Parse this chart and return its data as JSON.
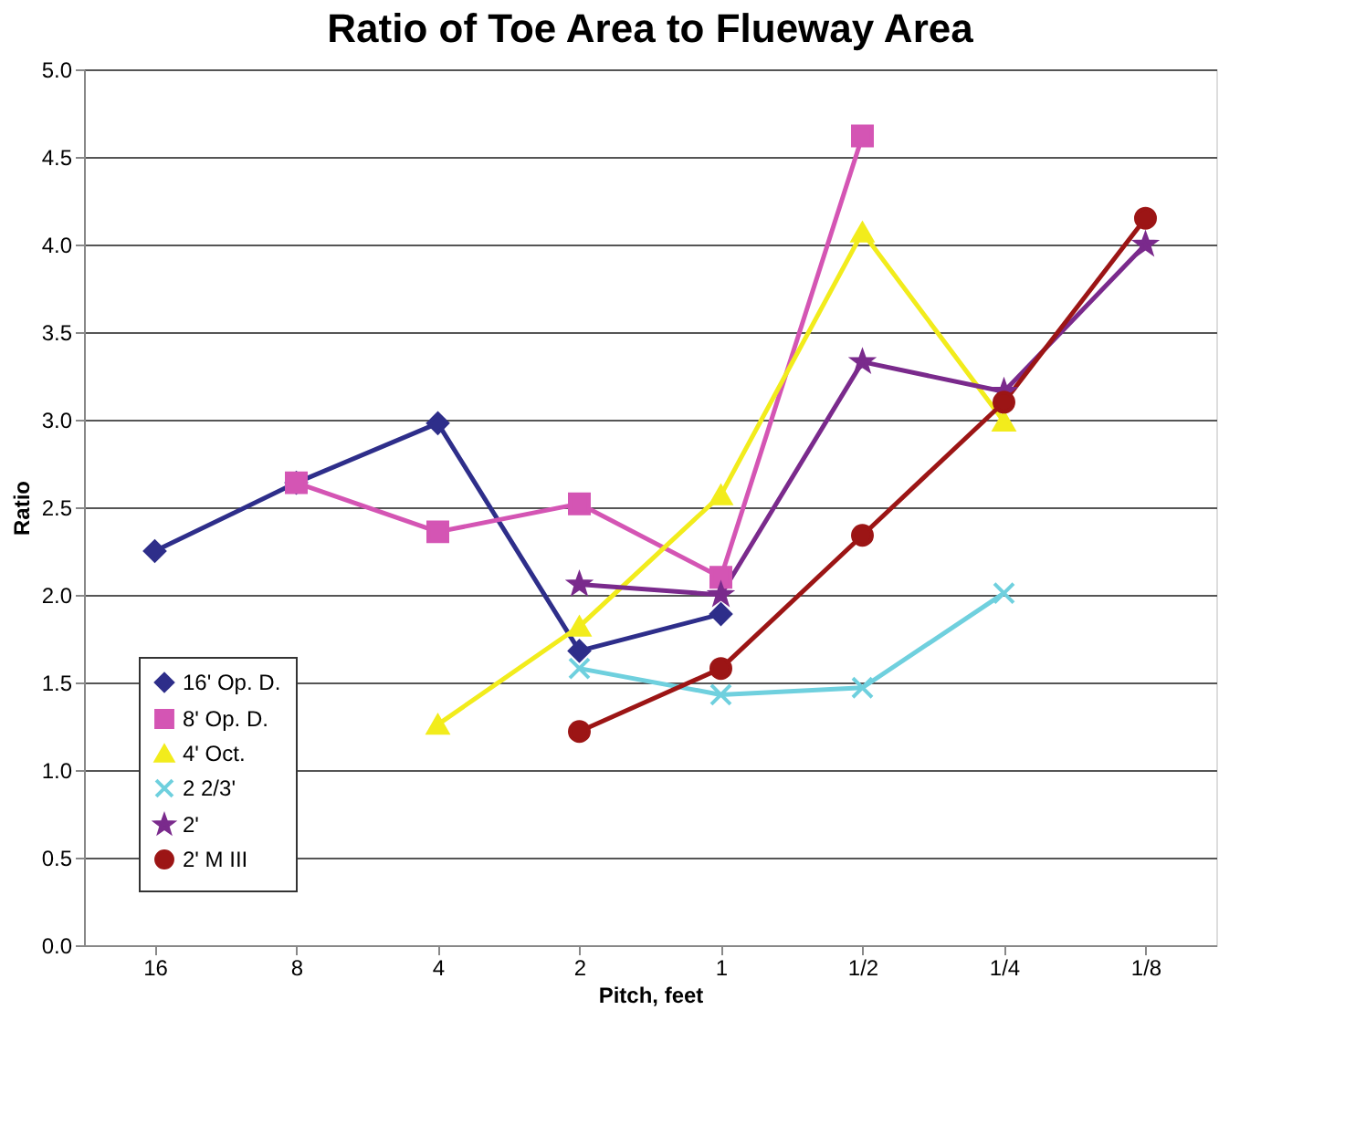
{
  "chart_data": {
    "type": "line",
    "title": "Ratio of Toe Area to Flueway Area",
    "xlabel": "Pitch, feet",
    "ylabel": "Ratio",
    "categories": [
      "16",
      "8",
      "4",
      "2",
      "1",
      "1/2",
      "1/4",
      "1/8"
    ],
    "series": [
      {
        "name": "16' Op. D.",
        "color": "#2e2e8a",
        "marker": "diamond",
        "values": [
          2.25,
          2.64,
          2.98,
          1.68,
          1.89,
          null,
          null,
          null
        ]
      },
      {
        "name": "8' Op. D.",
        "color": "#d455b4",
        "marker": "square",
        "values": [
          null,
          2.64,
          2.36,
          2.52,
          2.1,
          4.62,
          null,
          null
        ]
      },
      {
        "name": "4' Oct.",
        "color": "#f2ec1c",
        "marker": "triangle",
        "values": [
          null,
          null,
          1.26,
          1.82,
          2.57,
          4.07,
          2.99,
          null
        ]
      },
      {
        "name": "2 2/3'",
        "color": "#6fd0de",
        "marker": "cross",
        "values": [
          null,
          null,
          null,
          1.58,
          1.43,
          1.47,
          2.01,
          null
        ]
      },
      {
        "name": "2'",
        "color": "#7a2a8c",
        "marker": "star",
        "values": [
          null,
          null,
          null,
          2.06,
          2.0,
          3.33,
          3.16,
          4.0
        ]
      },
      {
        "name": "2' M III",
        "color": "#9c1515",
        "marker": "circle",
        "values": [
          null,
          null,
          null,
          1.22,
          1.58,
          2.34,
          3.1,
          4.15
        ]
      }
    ],
    "ylim": [
      0,
      5
    ],
    "yticks": [
      {
        "value": 0,
        "label": "0.0"
      },
      {
        "value": 0.5,
        "label": "0.5"
      },
      {
        "value": 1,
        "label": "1.0"
      },
      {
        "value": 1.5,
        "label": "1.5"
      },
      {
        "value": 2,
        "label": "2.0"
      },
      {
        "value": 2.5,
        "label": "2.5"
      },
      {
        "value": 3,
        "label": "3.0"
      },
      {
        "value": 3.5,
        "label": "3.5"
      },
      {
        "value": 4,
        "label": "4.0"
      },
      {
        "value": 4.5,
        "label": "4.5"
      },
      {
        "value": 5,
        "label": "5.0"
      }
    ],
    "grid": "y",
    "legend": "bottom left"
  }
}
